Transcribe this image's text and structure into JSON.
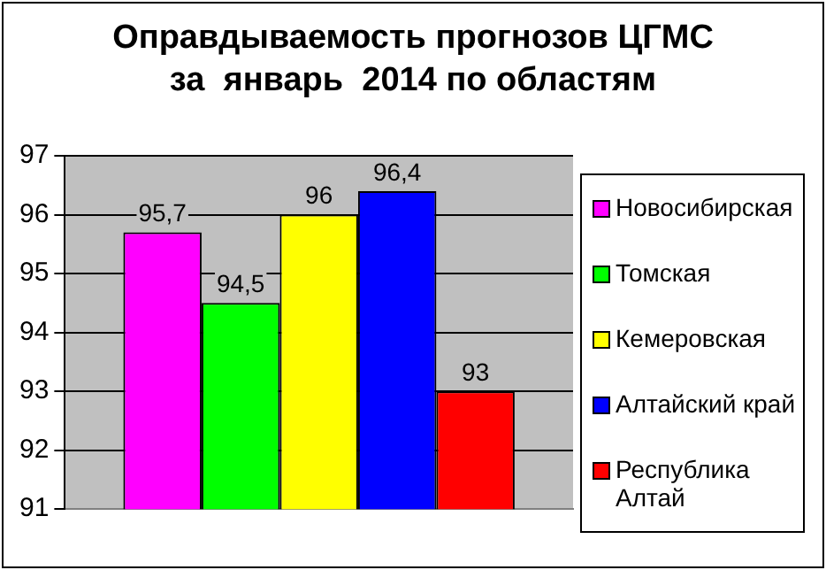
{
  "chart_data": {
    "type": "bar",
    "title": "Оправдываемость прогнозов ЦГМС\nза  январь  2014 по областям",
    "categories": [
      null
    ],
    "series": [
      {
        "name": "Новосибирская",
        "color": "#ff00ff",
        "values": [
          95.7
        ],
        "value_labels": [
          "95,7"
        ]
      },
      {
        "name": "Томская",
        "color": "#00ff00",
        "values": [
          94.5
        ],
        "value_labels": [
          "94,5"
        ]
      },
      {
        "name": "Кемеровская",
        "color": "#ffff00",
        "values": [
          96
        ],
        "value_labels": [
          "96"
        ]
      },
      {
        "name": "Алтайский край",
        "color": "#0000ff",
        "values": [
          96.4
        ],
        "value_labels": [
          "96,4"
        ]
      },
      {
        "name": "Республика Алтай",
        "color": "#ff0000",
        "values": [
          93
        ],
        "value_labels": [
          "93"
        ]
      }
    ],
    "ylim": [
      91,
      97
    ],
    "yticks": [
      91,
      92,
      93,
      94,
      95,
      96,
      97
    ],
    "grid": "y",
    "legend": "right"
  }
}
